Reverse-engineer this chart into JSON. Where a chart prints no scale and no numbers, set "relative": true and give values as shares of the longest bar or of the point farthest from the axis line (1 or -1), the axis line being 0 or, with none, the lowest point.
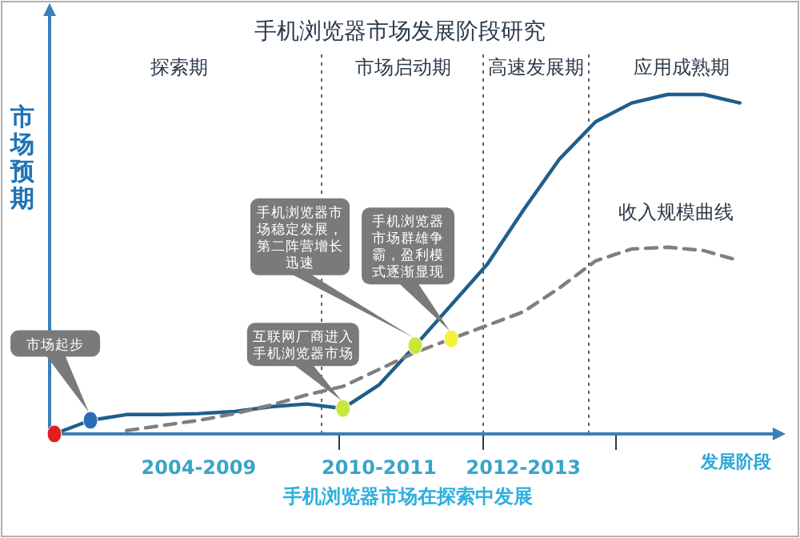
{
  "chart_data": {
    "type": "line",
    "title": "手机浏览器市场发展阶段研究",
    "xlabel": "发展阶段",
    "ylabel": "市场预期",
    "relative": true,
    "categories": [
      null,
      null,
      null,
      null,
      "2004-2009",
      null,
      null,
      null,
      null,
      "2010-2011",
      null,
      null,
      null,
      "2012-2013",
      null,
      null,
      null,
      null,
      null,
      null,
      null
    ],
    "series": [
      {
        "color": "#1f5f8b",
        "values": [
          0,
          0.04,
          0.057,
          0.057,
          0.06,
          0.066,
          0.08,
          0.088,
          0.075,
          0.145,
          0.26,
          0.38,
          0.5,
          0.66,
          0.81,
          0.92,
          0.975,
          1.0,
          1.0,
          0.975,
          null
        ]
      },
      {
        "name": "收入规模曲线",
        "color": "#7f7f7f",
        "line_style": "dashed",
        "values": [
          null,
          null,
          0.01,
          0.025,
          0.04,
          0.06,
          0.085,
          0.115,
          0.14,
          0.19,
          0.24,
          0.28,
          0.32,
          0.36,
          0.43,
          0.51,
          0.545,
          0.55,
          0.54,
          0.51,
          null
        ]
      },
      {
        "type": "scatter",
        "marker": "circle",
        "colors": [
          "#e02020",
          "#2a6fb5",
          null,
          null,
          null,
          null,
          null,
          null,
          "#c6e83a",
          null,
          "#c6e83a",
          "#f2f23a",
          null,
          null,
          null,
          null,
          null,
          null,
          null,
          null,
          null
        ],
        "values": [
          0,
          0.04,
          null,
          null,
          null,
          null,
          null,
          null,
          0.075,
          null,
          0.26,
          0.28,
          null,
          null,
          null,
          null,
          null,
          null,
          null,
          null,
          null
        ]
      }
    ],
    "annotations": [
      "探索期",
      "市场启动期",
      "高速发展期",
      "应用成熟期",
      "市场起步",
      "互联网厂商进入手机浏览器市场",
      "手机浏览器市场稳定发展，第二阵营增长迅速",
      "手机浏览器市场群雄争霸，盈利模式逐渐显现",
      "手机浏览器市场在探索中发展"
    ]
  }
}
